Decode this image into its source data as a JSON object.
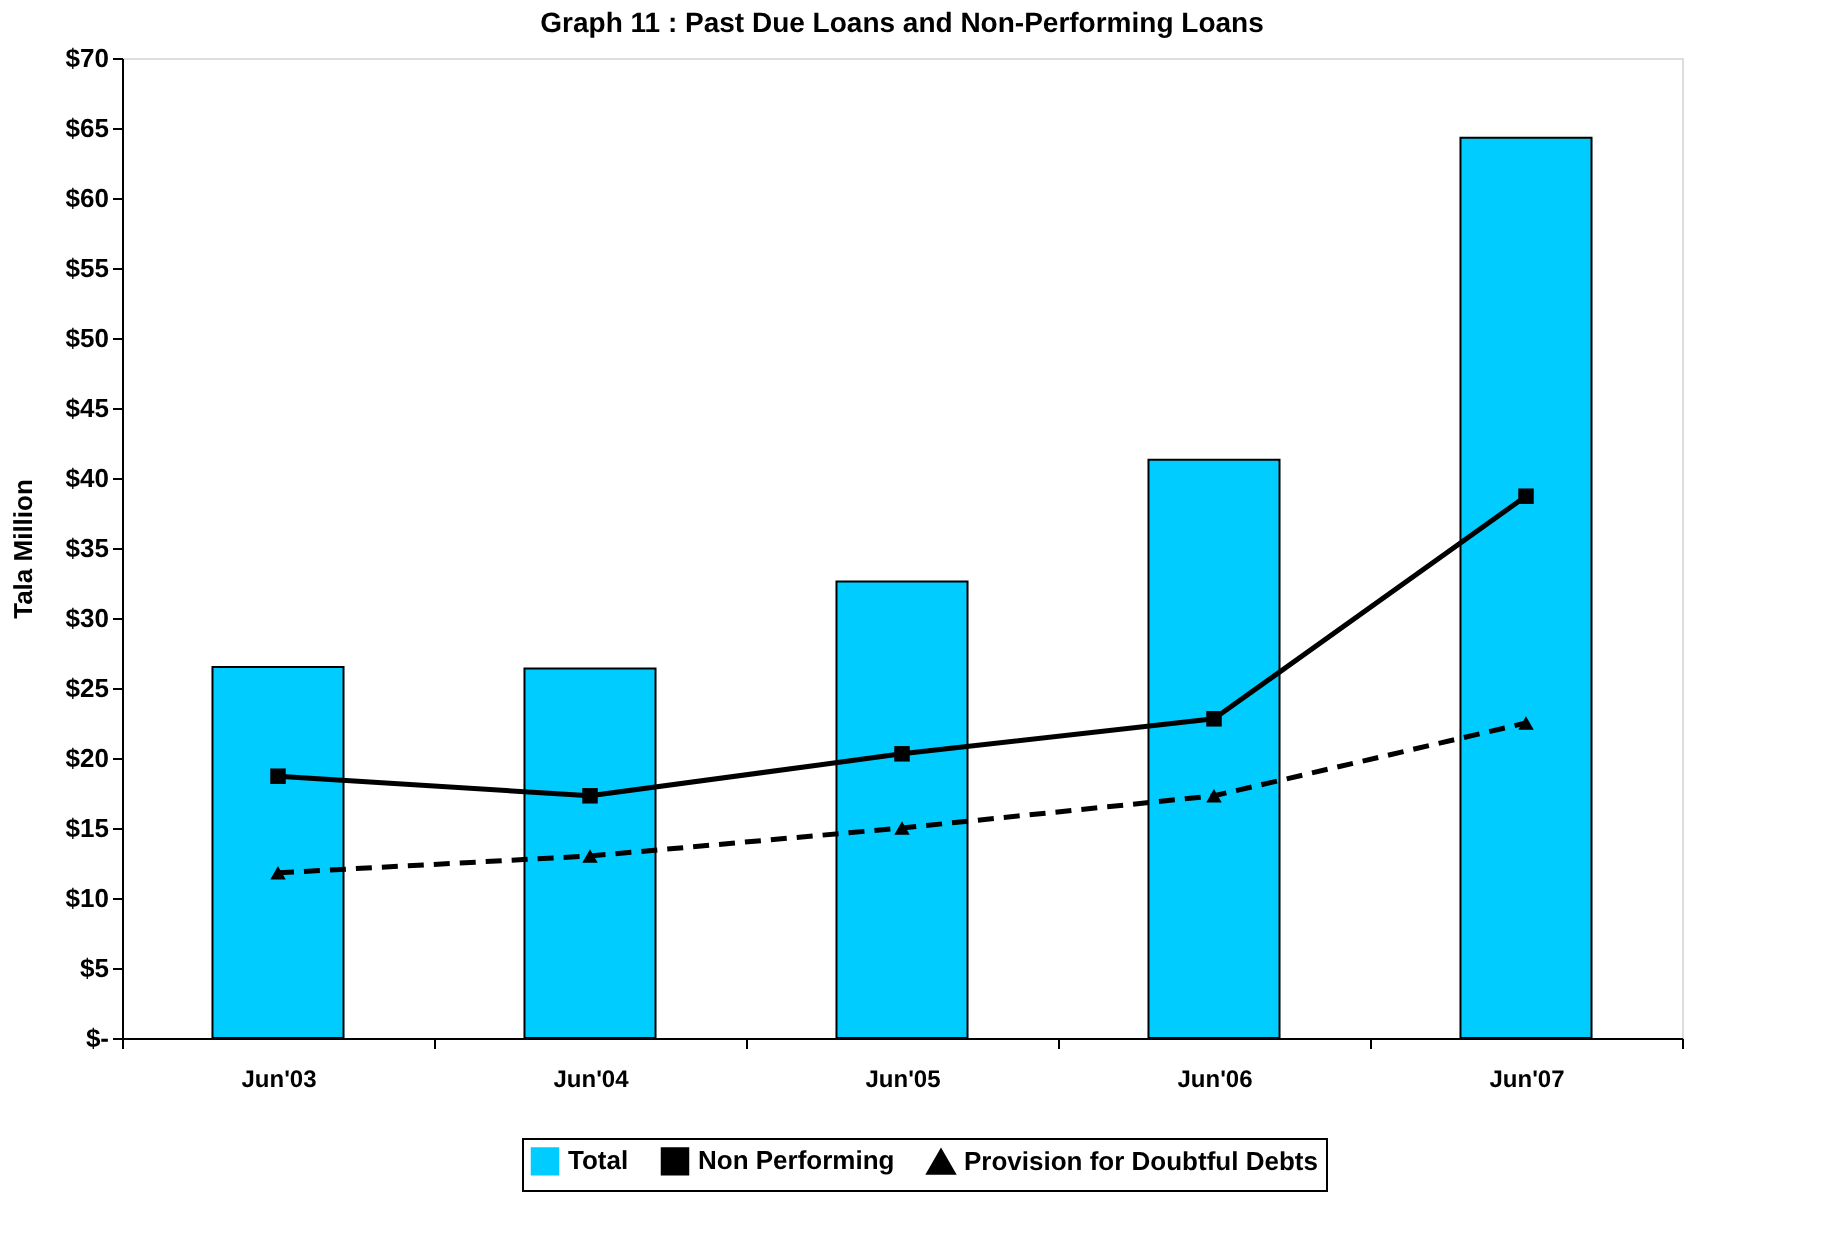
{
  "chart_data": {
    "type": "bar",
    "title": "Graph 11 : Past Due Loans and Non-Performing Loans",
    "ylabel": "Tala Million",
    "categories": [
      "Jun'03",
      "Jun'04",
      "Jun'05",
      "Jun'06",
      "Jun'07"
    ],
    "series": [
      {
        "name": "Total",
        "type": "bar",
        "color": "#00ccff",
        "values": [
          26.5,
          26.4,
          32.6,
          41.3,
          64.3
        ]
      },
      {
        "name": "Non Performing",
        "type": "line",
        "color": "#000000",
        "marker": "square",
        "line_style": "solid",
        "values": [
          18.7,
          17.3,
          20.3,
          22.8,
          38.7
        ]
      },
      {
        "name": "Provision for Doubtful Debts",
        "type": "line",
        "color": "#000000",
        "marker": "triangle",
        "line_style": "dashed",
        "values": [
          11.8,
          13.0,
          15.0,
          17.3,
          22.5
        ]
      }
    ],
    "ylim": [
      0,
      70
    ],
    "yticks": [
      {
        "value": 0,
        "label": "$-"
      },
      {
        "value": 5,
        "label": "$5"
      },
      {
        "value": 10,
        "label": "$10"
      },
      {
        "value": 15,
        "label": "$15"
      },
      {
        "value": 20,
        "label": "$20"
      },
      {
        "value": 25,
        "label": "$25"
      },
      {
        "value": 30,
        "label": "$30"
      },
      {
        "value": 35,
        "label": "$35"
      },
      {
        "value": 40,
        "label": "$40"
      },
      {
        "value": 45,
        "label": "$45"
      },
      {
        "value": 50,
        "label": "$50"
      },
      {
        "value": 55,
        "label": "$55"
      },
      {
        "value": 60,
        "label": "$60"
      },
      {
        "value": 65,
        "label": "$65"
      },
      {
        "value": 70,
        "label": "$70"
      }
    ],
    "grid": false,
    "legend": "bottom"
  }
}
